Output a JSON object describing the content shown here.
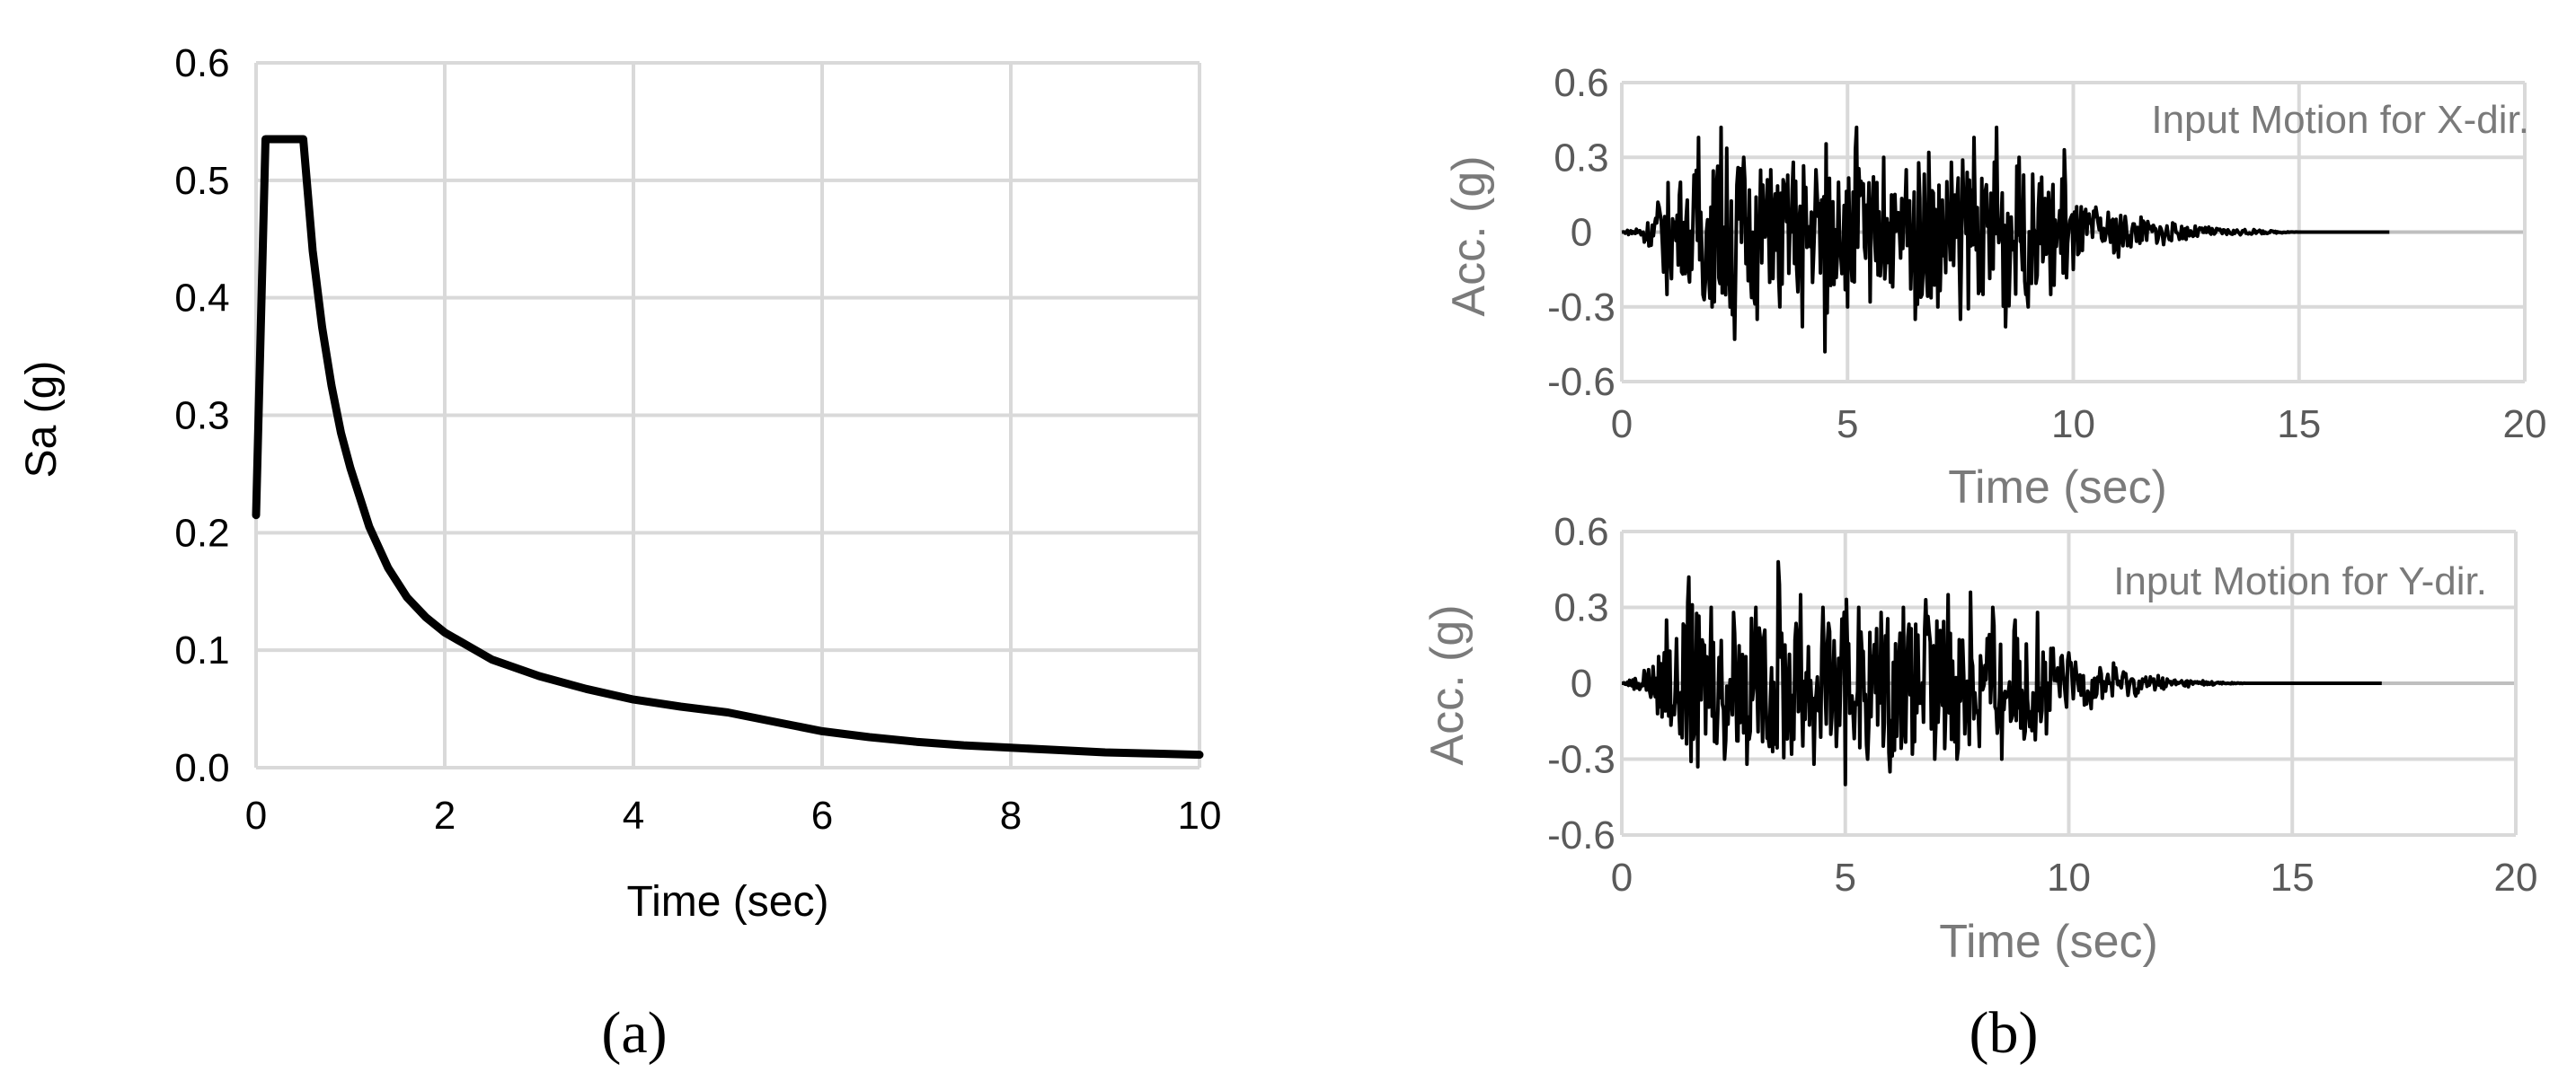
{
  "figure": {
    "panel_a": "(a)",
    "panel_b": "(b)"
  },
  "colors": {
    "series": "#000000",
    "grid": "#d9d9d9",
    "grey_text": "#7a7a7a"
  },
  "chart_data": [
    {
      "type": "line",
      "panel": "(a)",
      "title": "",
      "xlabel": "Time (sec)",
      "ylabel": "Sa (g)",
      "xlim": [
        0,
        10
      ],
      "ylim": [
        0,
        0.6
      ],
      "xticks": [
        0,
        2,
        4,
        6,
        8,
        10
      ],
      "xtick_labels": [
        "0",
        "2",
        "4",
        "6",
        "8",
        "10"
      ],
      "yticks": [
        0,
        0.1,
        0.2,
        0.3,
        0.4,
        0.5,
        0.6
      ],
      "ytick_labels": [
        "0.0",
        "0.1",
        "0.2",
        "0.3",
        "0.4",
        "0.5",
        "0.6"
      ],
      "grid": true,
      "series": [
        {
          "x": [
            0,
            0.1,
            0.5,
            0.6,
            0.7,
            0.8,
            0.9,
            1.0,
            1.2,
            1.4,
            1.6,
            1.8,
            2.0,
            2.5,
            3.0,
            3.5,
            4.0,
            4.5,
            5.0,
            5.5,
            6.0,
            6.5,
            7.0,
            7.5,
            8.0,
            8.5,
            9.0,
            9.5,
            10.0
          ],
          "y": [
            0.215,
            0.535,
            0.535,
            0.44,
            0.375,
            0.325,
            0.285,
            0.255,
            0.205,
            0.17,
            0.145,
            0.128,
            0.115,
            0.092,
            0.078,
            0.067,
            0.058,
            0.052,
            0.047,
            0.039,
            0.031,
            0.026,
            0.022,
            0.019,
            0.017,
            0.015,
            0.013,
            0.012,
            0.011
          ]
        }
      ]
    },
    {
      "type": "line",
      "panel": "(b)",
      "title": "",
      "annotation": "Input Motion for X-dir.",
      "xlabel": "Time (sec)",
      "ylabel": "Acc. (g)",
      "xlim": [
        0,
        20
      ],
      "ylim": [
        -0.6,
        0.6
      ],
      "xticks": [
        0,
        5,
        10,
        15,
        20
      ],
      "xtick_labels": [
        "0",
        "5",
        "10",
        "15",
        "20"
      ],
      "yticks": [
        -0.6,
        -0.3,
        0,
        0.3,
        0.6
      ],
      "ytick_labels": [
        "-0.6",
        "-0.3",
        "0",
        "0.3",
        "0.6"
      ],
      "grid": true,
      "duration": 17,
      "peak_positive": 0.42,
      "peak_negative": -0.48,
      "series": [
        {
          "x": [
            0,
            0.5,
            0.8,
            1.0,
            1.3,
            1.5,
            1.7,
            2.0,
            2.2,
            2.5,
            2.7,
            3.0,
            3.3,
            3.5,
            3.8,
            4.0,
            4.3,
            4.5,
            4.8,
            5.0,
            5.2,
            5.5,
            5.8,
            6.0,
            6.3,
            6.5,
            6.8,
            7.0,
            7.3,
            7.5,
            7.8,
            8.0,
            8.3,
            8.5,
            8.8,
            9.0,
            9.3,
            9.5,
            9.8,
            10.0,
            10.5,
            11.0,
            11.5,
            12.0,
            13.0,
            14.0,
            15.0,
            17.0
          ],
          "y": [
            0,
            -0.04,
            0.12,
            -0.25,
            0.2,
            -0.2,
            0.38,
            -0.3,
            0.42,
            -0.43,
            0.3,
            -0.35,
            0.25,
            -0.3,
            0.28,
            -0.38,
            0.25,
            -0.48,
            0.2,
            -0.3,
            0.42,
            -0.28,
            0.3,
            -0.22,
            0.25,
            -0.35,
            0.32,
            -0.3,
            0.28,
            -0.35,
            0.38,
            -0.25,
            0.42,
            -0.38,
            0.3,
            -0.3,
            0.22,
            -0.25,
            0.33,
            -0.15,
            0.1,
            -0.1,
            0.06,
            -0.05,
            0.02,
            0.01,
            0,
            0
          ]
        }
      ]
    },
    {
      "type": "line",
      "panel": "(b)",
      "title": "",
      "annotation": "Input Motion for Y-dir.",
      "xlabel": "Time (sec)",
      "ylabel": "Acc. (g)",
      "xlim": [
        0,
        20
      ],
      "ylim": [
        -0.6,
        0.6
      ],
      "xticks": [
        0,
        5,
        10,
        15,
        20
      ],
      "xtick_labels": [
        "0",
        "5",
        "10",
        "15",
        "20"
      ],
      "yticks": [
        -0.6,
        -0.3,
        0,
        0.3,
        0.6
      ],
      "ytick_labels": [
        "-0.6",
        "-0.3",
        "0",
        "0.3",
        "0.6"
      ],
      "grid": true,
      "duration": 17,
      "peak_positive": 0.48,
      "peak_negative": -0.4,
      "series": [
        {
          "x": [
            0,
            0.5,
            0.8,
            1.0,
            1.3,
            1.5,
            1.7,
            2.0,
            2.3,
            2.5,
            2.8,
            3.0,
            3.3,
            3.5,
            3.8,
            4.0,
            4.3,
            4.5,
            4.8,
            5.0,
            5.3,
            5.5,
            5.8,
            6.0,
            6.3,
            6.5,
            6.8,
            7.0,
            7.3,
            7.5,
            7.8,
            8.0,
            8.3,
            8.5,
            8.8,
            9.0,
            9.3,
            9.5,
            10.0,
            10.5,
            11.0,
            11.5,
            12.0,
            13.0,
            14.0,
            15.0,
            17.0
          ],
          "y": [
            0,
            0.05,
            -0.12,
            0.25,
            -0.2,
            0.42,
            -0.33,
            0.3,
            -0.3,
            0.28,
            -0.32,
            0.3,
            -0.25,
            0.48,
            -0.28,
            0.35,
            -0.32,
            0.3,
            -0.25,
            -0.4,
            0.3,
            -0.3,
            0.28,
            -0.35,
            0.3,
            -0.28,
            0.33,
            -0.3,
            0.35,
            -0.3,
            0.36,
            -0.25,
            0.3,
            -0.3,
            0.25,
            -0.22,
            0.28,
            -0.2,
            0.12,
            -0.1,
            0.08,
            -0.05,
            0.03,
            0.01,
            0,
            0,
            0
          ]
        }
      ]
    }
  ]
}
